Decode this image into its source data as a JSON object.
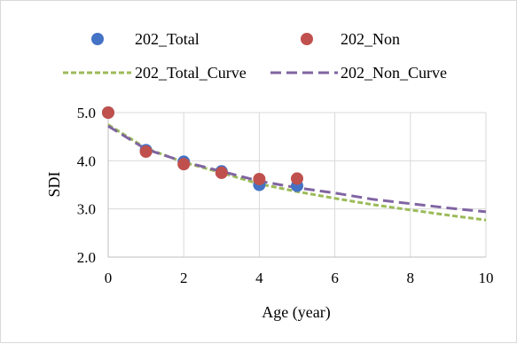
{
  "chart_data": {
    "type": "scatter",
    "title": "",
    "xlabel": "Age (year)",
    "ylabel": "SDI",
    "xlim": [
      0,
      10
    ],
    "ylim": [
      2.0,
      5.0
    ],
    "x_ticks": [
      "0",
      "2",
      "4",
      "6",
      "8",
      "10"
    ],
    "y_ticks": [
      "2.0",
      "3.0",
      "4.0",
      "5.0"
    ],
    "grid": "both",
    "legend_position": "top",
    "points_series": [
      {
        "name": "202_Total",
        "color": "#4472c4",
        "marker": "circle",
        "x": [
          0,
          1,
          2,
          3,
          4,
          5
        ],
        "y": [
          5.0,
          4.22,
          3.98,
          3.78,
          3.5,
          3.48
        ]
      },
      {
        "name": "202_Non",
        "color": "#c0504d",
        "marker": "circle",
        "x": [
          0,
          1,
          2,
          3,
          4,
          5
        ],
        "y": [
          5.0,
          4.19,
          3.93,
          3.75,
          3.62,
          3.63
        ]
      }
    ],
    "curve_series": [
      {
        "name": "202_Total_Curve",
        "color": "#9bbb59",
        "dash": "dotted",
        "x": [
          0,
          1,
          2,
          3,
          4,
          5,
          6,
          7,
          8,
          9,
          10
        ],
        "y": [
          4.75,
          4.26,
          3.97,
          3.75,
          3.52,
          3.36,
          3.22,
          3.09,
          2.98,
          2.87,
          2.77
        ]
      },
      {
        "name": "202_Non_Curve",
        "color": "#8064a2",
        "dash": "dashed",
        "x": [
          0,
          1,
          2,
          3,
          4,
          5,
          6,
          7,
          8,
          9,
          10
        ],
        "y": [
          4.72,
          4.24,
          3.98,
          3.78,
          3.58,
          3.44,
          3.33,
          3.2,
          3.11,
          3.02,
          2.94
        ]
      }
    ]
  }
}
